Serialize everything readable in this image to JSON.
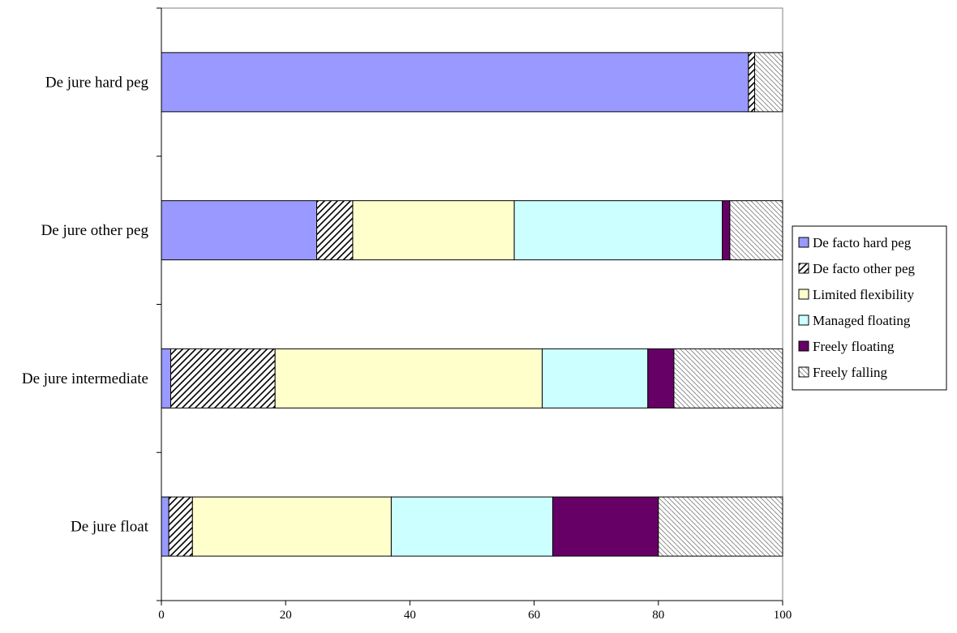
{
  "chart_data": {
    "type": "bar",
    "orientation": "horizontal",
    "stacked": true,
    "categories": [
      "De jure hard peg",
      "De jure other peg",
      "De jure intermediate",
      "De jure float"
    ],
    "series": [
      {
        "name": "De facto hard peg",
        "color": "#9999ff",
        "pattern": "solid",
        "values": [
          94.5,
          25.0,
          1.5,
          1.2
        ]
      },
      {
        "name": "De facto other peg",
        "color": "#000000",
        "pattern": "diagonal-stripes",
        "values": [
          1.0,
          5.8,
          16.8,
          3.8
        ]
      },
      {
        "name": "Limited flexibility",
        "color": "#ffffcc",
        "pattern": "solid",
        "values": [
          0.0,
          26.0,
          43.0,
          32.0
        ]
      },
      {
        "name": "Managed floating",
        "color": "#ccffff",
        "pattern": "solid",
        "values": [
          0.0,
          33.5,
          17.0,
          26.0
        ]
      },
      {
        "name": "Freely floating",
        "color": "#660066",
        "pattern": "solid",
        "values": [
          0.0,
          1.2,
          4.2,
          17.0
        ]
      },
      {
        "name": "Freely falling",
        "color": "#808080",
        "pattern": "light-diagonal",
        "values": [
          4.5,
          8.5,
          17.5,
          20.0
        ]
      }
    ],
    "xlim": [
      0,
      100
    ],
    "xticks": [
      "0",
      "20",
      "40",
      "60",
      "80",
      "100"
    ],
    "xlabel": "",
    "ylabel": "",
    "title": "",
    "grid": false,
    "legend_position": "right"
  }
}
